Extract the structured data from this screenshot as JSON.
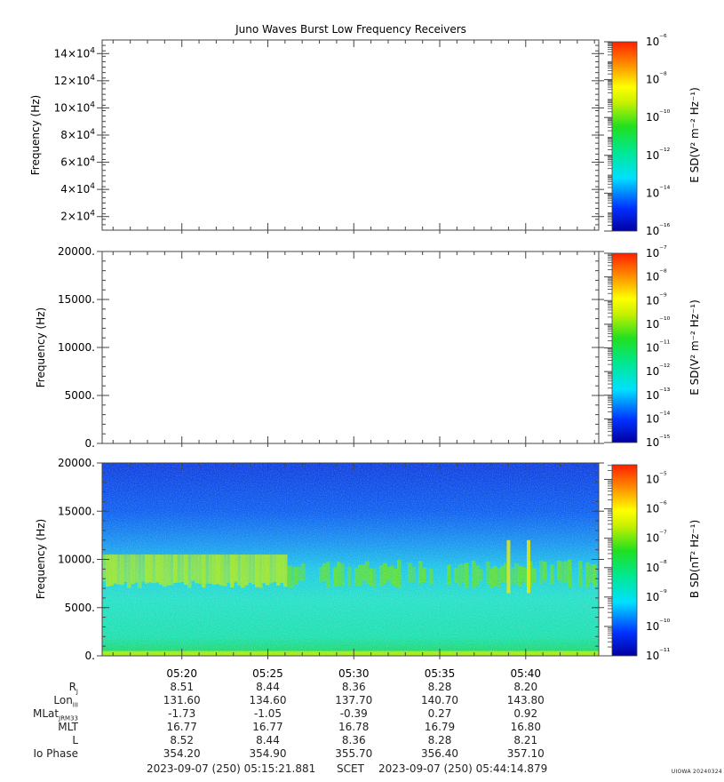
{
  "chart_data": [
    {
      "type": "heatmap",
      "title": "Juno Waves Burst Low Frequency Receivers",
      "ylabel": "Frequency (Hz)",
      "y_ticks": [
        "2×10^4",
        "4×10^4",
        "6×10^4",
        "8×10^4",
        "10×10^4",
        "12×10^4",
        "14×10^4"
      ],
      "y_tick_values": [
        20000,
        40000,
        60000,
        80000,
        100000,
        120000,
        140000
      ],
      "ylim": [
        10000,
        150000
      ],
      "colorbar": {
        "label": "E SD(V² m⁻² Hz⁻¹)",
        "scale": "log",
        "ticks": [
          "10⁻⁶",
          "10⁻⁸",
          "10⁻¹⁰",
          "10⁻¹²",
          "10⁻¹⁴",
          "10⁻¹⁶"
        ],
        "range_exp": [
          -16,
          -6
        ]
      },
      "data": "empty"
    },
    {
      "type": "heatmap",
      "ylabel": "Frequency (Hz)",
      "y_ticks": [
        "0.",
        "5000.",
        "10000.",
        "15000.",
        "20000."
      ],
      "y_tick_values": [
        0,
        5000,
        10000,
        15000,
        20000
      ],
      "ylim": [
        0,
        20000
      ],
      "colorbar": {
        "label": "E SD(V² m⁻² Hz⁻¹)",
        "scale": "log",
        "ticks": [
          "10⁻⁷",
          "10⁻⁸",
          "10⁻⁹",
          "10⁻¹⁰",
          "10⁻¹¹",
          "10⁻¹²",
          "10⁻¹³",
          "10⁻¹⁴",
          "10⁻¹⁵"
        ],
        "range_exp": [
          -15,
          -7
        ]
      },
      "data": "empty"
    },
    {
      "type": "heatmap",
      "ylabel": "Frequency (Hz)",
      "y_ticks": [
        "0.",
        "5000.",
        "10000.",
        "15000.",
        "20000."
      ],
      "y_tick_values": [
        0,
        5000,
        10000,
        15000,
        20000
      ],
      "ylim": [
        0,
        20000
      ],
      "x_ticks": [
        "05:20",
        "05:25",
        "05:30",
        "05:35",
        "05:40"
      ],
      "xlim": [
        "05:15:21.881",
        "05:44:14.879"
      ],
      "colorbar": {
        "label": "B SD(nT² Hz⁻¹)",
        "scale": "log",
        "ticks": [
          "10⁻⁵",
          "10⁻⁶",
          "10⁻⁷",
          "10⁻⁸",
          "10⁻⁹",
          "10⁻¹⁰",
          "10⁻¹¹"
        ],
        "range_exp": [
          -11,
          -4.5
        ]
      },
      "features": {
        "background_low": "cyan-green near 1e-9 below 7000 Hz",
        "background_high": "blue near 1e-10 above 12000 Hz",
        "emission_band_hz": [
          7000,
          10500
        ],
        "emission_band_level": "green-yellow near 1e-7.5",
        "emission_band_time": [
          "05:15:21",
          "05:44:14"
        ],
        "vertical_bursts": [
          "05:39:00",
          "05:40:10"
        ],
        "bottom_band_hz": [
          0,
          500
        ]
      }
    }
  ],
  "ephemeris": {
    "ticks": [
      "05:20",
      "05:25",
      "05:30",
      "05:35",
      "05:40"
    ],
    "rows": [
      {
        "label": "R",
        "sub": "J",
        "values": [
          "8.51",
          "8.44",
          "8.36",
          "8.28",
          "8.20"
        ]
      },
      {
        "label": "Lon",
        "sub": "III",
        "values": [
          "131.60",
          "134.60",
          "137.70",
          "140.70",
          "143.80"
        ]
      },
      {
        "label": "MLat",
        "sub": "JRM33",
        "values": [
          "-1.73",
          "-1.05",
          "-0.39",
          "0.27",
          "0.92"
        ]
      },
      {
        "label": "MLT",
        "sub": "",
        "values": [
          "16.77",
          "16.77",
          "16.78",
          "16.79",
          "16.80"
        ]
      },
      {
        "label": "L",
        "sub": "",
        "values": [
          "8.52",
          "8.44",
          "8.36",
          "8.28",
          "8.21"
        ]
      },
      {
        "label": "Io Phase",
        "sub": "",
        "values": [
          "354.20",
          "354.90",
          "355.70",
          "356.40",
          "357.10"
        ]
      }
    ]
  },
  "time_range": {
    "start": "2023-09-07 (250) 05:15:21.881",
    "scet": "SCET",
    "end": "2023-09-07 (250) 05:44:14.879"
  },
  "watermark": "UIOWA 20240324"
}
